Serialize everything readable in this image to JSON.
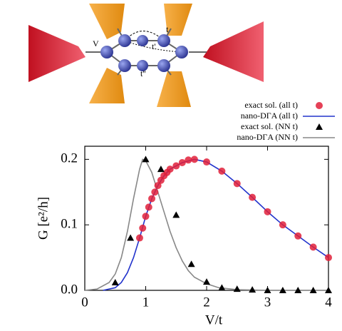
{
  "chart_data": {
    "type": "line",
    "xlabel": "V/t",
    "ylabel": "G [e²/h]",
    "annotations": [
      "V",
      "t",
      "t'",
      "t''"
    ],
    "xlim": [
      0,
      4
    ],
    "ylim": [
      0,
      0.22
    ],
    "xticks": [
      0,
      1,
      2,
      3,
      4
    ],
    "yticks": [
      {
        "value": 0,
        "label": "0.0"
      },
      0.1,
      0.2
    ],
    "series": [
      {
        "name": "exact sol. (all t)",
        "color": "#e0203a",
        "mode": "markers",
        "marker": "circle",
        "x": [
          0.9,
          0.95,
          1.0,
          1.05,
          1.1,
          1.15,
          1.2,
          1.25,
          1.3,
          1.35,
          1.4,
          1.5,
          1.6,
          1.7,
          1.8,
          2.0,
          2.25,
          2.5,
          2.75,
          3.0,
          3.25,
          3.5,
          3.75,
          4.0
        ],
        "values": [
          0.08,
          0.095,
          0.113,
          0.127,
          0.14,
          0.15,
          0.16,
          0.168,
          0.175,
          0.18,
          0.185,
          0.19,
          0.195,
          0.199,
          0.2,
          0.196,
          0.182,
          0.163,
          0.142,
          0.12,
          0.1,
          0.083,
          0.066,
          0.05
        ]
      },
      {
        "name": "nano-DΓA (all t)",
        "color": "#2233cc",
        "mode": "line",
        "x": [
          0.3,
          0.5,
          0.6,
          0.7,
          0.8,
          0.9,
          1.0,
          1.1,
          1.2,
          1.3,
          1.4,
          1.5,
          1.6,
          1.8,
          2.0,
          2.25,
          2.5,
          2.75,
          3.0,
          3.25,
          3.5,
          3.75,
          4.0
        ],
        "values": [
          0,
          0.004,
          0.012,
          0.027,
          0.05,
          0.08,
          0.113,
          0.14,
          0.16,
          0.175,
          0.185,
          0.19,
          0.195,
          0.2,
          0.196,
          0.182,
          0.163,
          0.142,
          0.12,
          0.1,
          0.083,
          0.066,
          0.05
        ]
      },
      {
        "name": "exact sol. (NN t)",
        "color": "#000000",
        "mode": "markers",
        "marker": "triangle",
        "x": [
          0.5,
          0.75,
          1.0,
          1.25,
          1.5,
          1.75,
          2.0,
          2.25,
          2.5,
          2.75,
          3.0,
          3.25,
          3.5,
          3.75,
          4.0
        ],
        "values": [
          0.012,
          0.08,
          0.2,
          0.185,
          0.115,
          0.04,
          0.013,
          0.004,
          0.002,
          0.001,
          0,
          0,
          0,
          0,
          0
        ]
      },
      {
        "name": "nano-DΓA (NN t)",
        "color": "#888888",
        "mode": "line",
        "x": [
          0,
          0.2,
          0.4,
          0.5,
          0.6,
          0.7,
          0.8,
          0.9,
          0.95,
          1.0,
          1.1,
          1.2,
          1.3,
          1.4,
          1.5,
          1.6,
          1.7,
          1.8,
          2.0,
          2.2,
          2.5,
          3.0,
          4.0
        ],
        "values": [
          0,
          0.002,
          0.012,
          0.025,
          0.05,
          0.09,
          0.14,
          0.185,
          0.2,
          0.198,
          0.18,
          0.15,
          0.12,
          0.09,
          0.065,
          0.045,
          0.03,
          0.02,
          0.01,
          0.004,
          0.001,
          0,
          0
        ]
      }
    ]
  }
}
